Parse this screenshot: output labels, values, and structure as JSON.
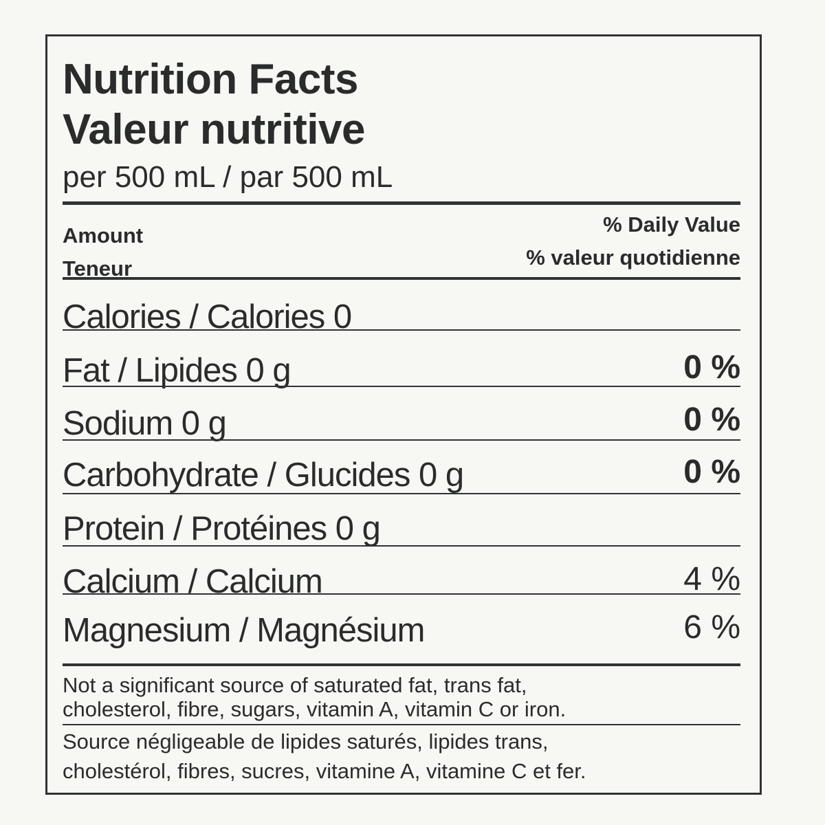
{
  "header": {
    "title_en": "Nutrition Facts",
    "title_fr": "Valeur nutritive",
    "serving": "per 500 mL / par 500 mL"
  },
  "columns": {
    "amount_en": "Amount",
    "amount_fr": "Teneur",
    "dv_en": "% Daily Value",
    "dv_fr": "% valeur quotidienne"
  },
  "rows": [
    {
      "label": "Calories / Calories 0"
    },
    {
      "label": "Fat / Lipides 0 g",
      "dv": "0 %"
    },
    {
      "label": "Sodium 0 g",
      "dv": "0 %"
    },
    {
      "label": "Carbohydrate / Glucides 0 g",
      "dv": "0 %"
    },
    {
      "label": "Protein / Protéines 0 g"
    },
    {
      "label": "Calcium / Calcium",
      "dv": "4 %"
    },
    {
      "label": "Magnesium / Magnésium",
      "dv": "6 %"
    }
  ],
  "footnotes": [
    [
      "Not a significant source of saturated fat, trans fat,",
      "cholesterol, fibre, sugars, vitamin A, vitamin C or iron."
    ],
    [
      "Source négligeable de lipides saturés, lipides trans,",
      "cholestérol, fibres, sucres, vitamine A, vitamine C et fer."
    ]
  ]
}
